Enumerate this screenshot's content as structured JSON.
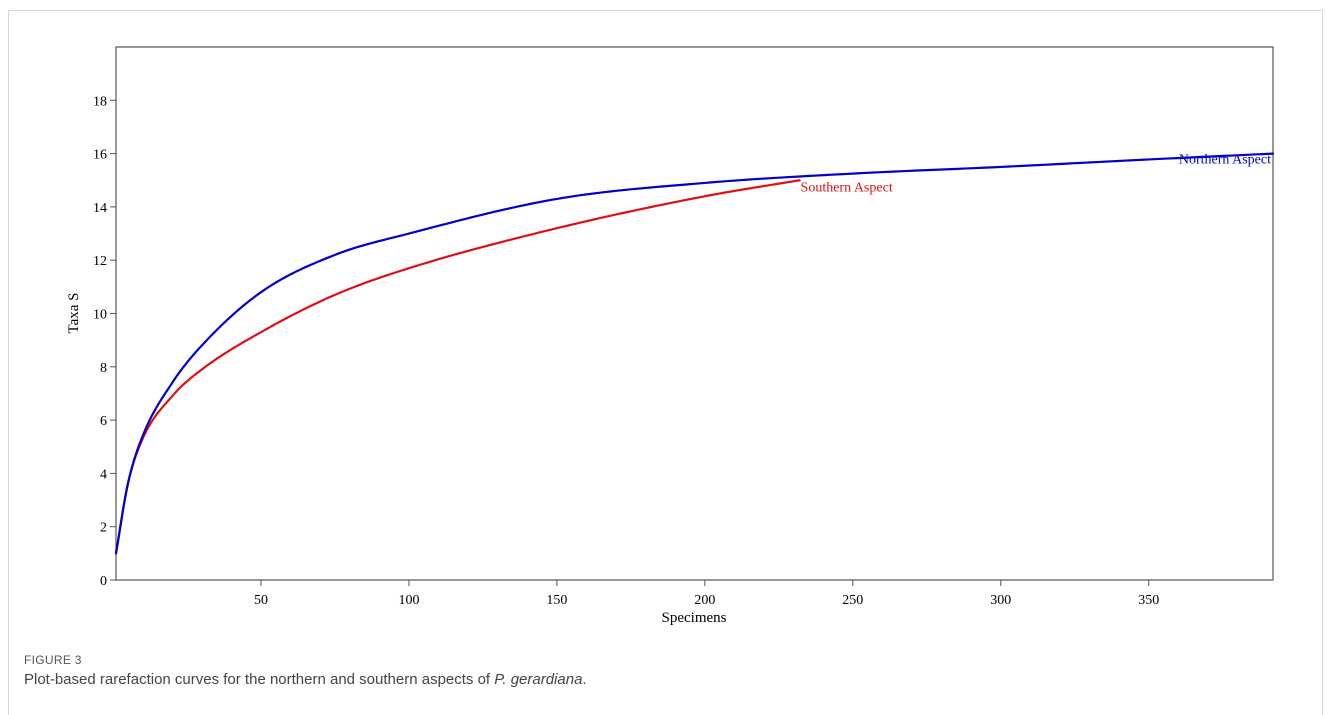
{
  "caption": {
    "figure_label": "FIGURE 3",
    "text_before": "Plot-based rarefaction curves for the northern and southern aspects of ",
    "text_italic": "P. gerardiana",
    "text_after": "."
  },
  "chart_data": {
    "type": "line",
    "title": "",
    "xlabel": "Specimens",
    "ylabel": "Taxa S",
    "xlim": [
      1,
      392
    ],
    "ylim": [
      0,
      20
    ],
    "xticks": [
      50,
      100,
      150,
      200,
      250,
      300,
      350
    ],
    "yticks": [
      0,
      2,
      4,
      6,
      8,
      10,
      12,
      14,
      16,
      18
    ],
    "grid": false,
    "legend": "none",
    "series": [
      {
        "name": "Northern Aspect",
        "color": "#0000cc",
        "x": [
          1,
          5,
          10,
          20,
          30,
          50,
          75,
          100,
          150,
          200,
          250,
          300,
          350,
          392
        ],
        "y": [
          1,
          3.6,
          5.4,
          7.4,
          8.8,
          10.8,
          12.2,
          13.0,
          14.3,
          14.9,
          15.25,
          15.5,
          15.78,
          16.0
        ]
      },
      {
        "name": "Southern Aspect",
        "color": "#dd1111",
        "x": [
          1,
          5,
          10,
          20,
          30,
          50,
          75,
          100,
          150,
          200,
          232
        ],
        "y": [
          1,
          3.6,
          5.3,
          6.9,
          7.9,
          9.3,
          10.7,
          11.7,
          13.2,
          14.4,
          15.0
        ]
      }
    ]
  }
}
